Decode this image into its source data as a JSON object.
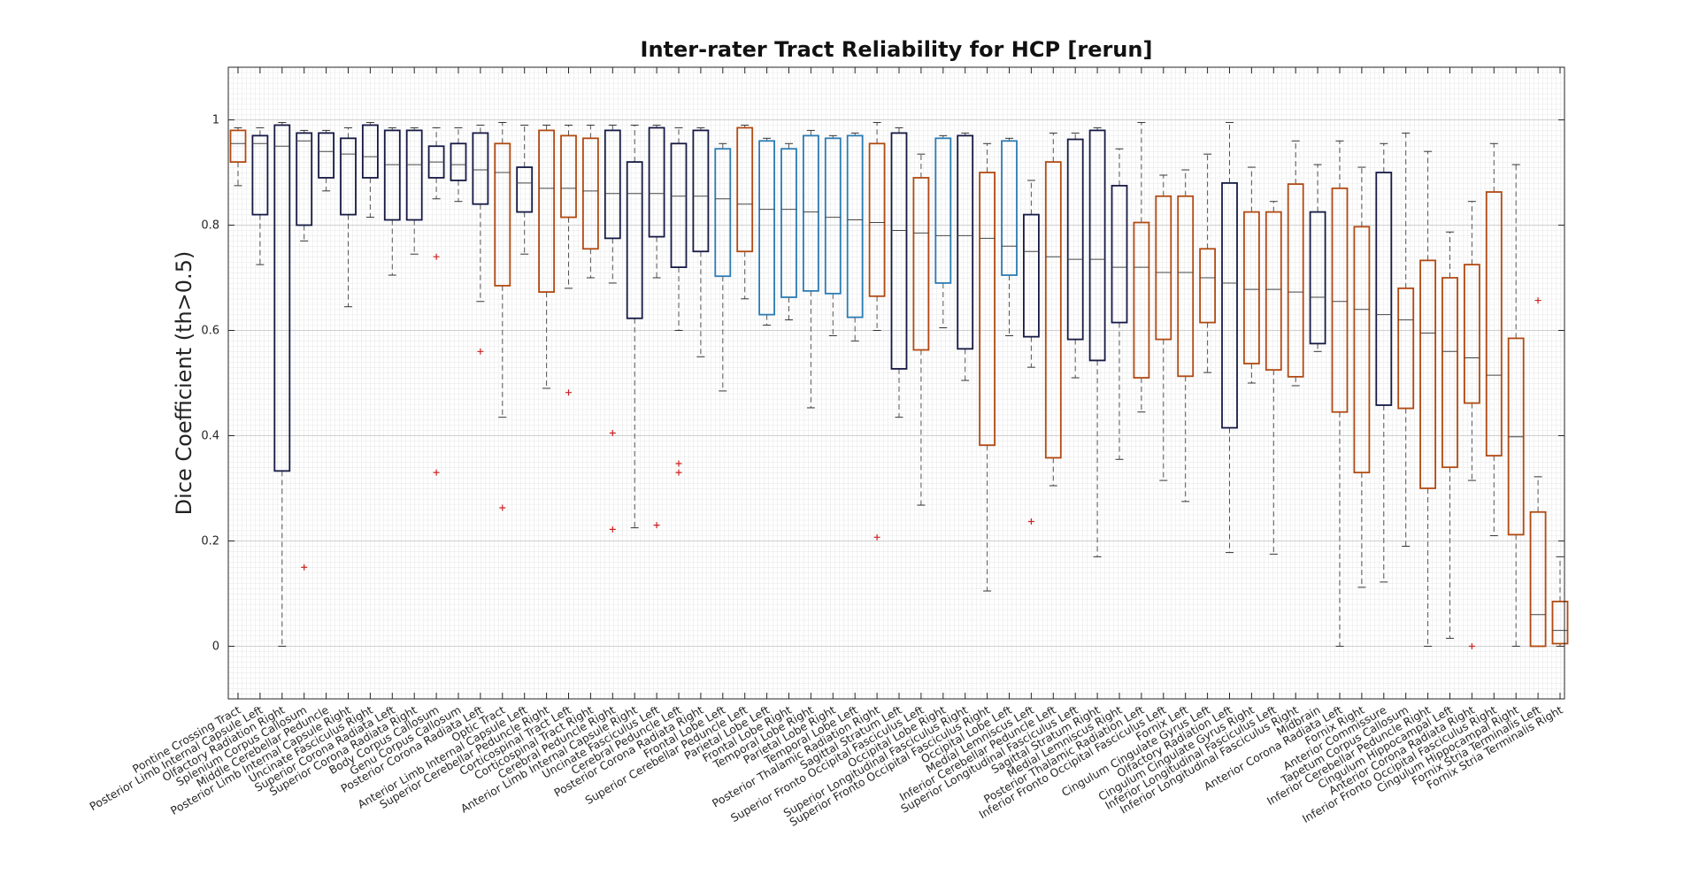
{
  "chart_data": {
    "type": "boxplot",
    "title": "Inter-rater Tract Reliability for HCP [rerun]",
    "xlabel": "",
    "ylabel": "Dice Coefficient (th>0.5)",
    "ylim": [
      -0.1,
      1.1
    ],
    "yticks": [
      0,
      0.2,
      0.4,
      0.6,
      0.8,
      1
    ],
    "grid": "minor",
    "colors": {
      "navy": "#161a44",
      "orange": "#b24a12",
      "blue": "#2c7cb3",
      "outlier": "#cc2222",
      "whisker": "#555555",
      "median": "#444444"
    },
    "boxes": [
      {
        "label": "Pontine Crossing Tract",
        "color": "orange",
        "min": 0.875,
        "q1": 0.92,
        "median": 0.955,
        "q3": 0.98,
        "max": 0.985,
        "outliers": []
      },
      {
        "label": "Posterior Limb Internal Capsule Left",
        "color": "navy",
        "min": 0.725,
        "q1": 0.82,
        "median": 0.955,
        "q3": 0.97,
        "max": 0.985,
        "outliers": []
      },
      {
        "label": "Olfactory Radiation Right",
        "color": "navy",
        "min": 0.0,
        "q1": 0.333,
        "median": 0.95,
        "q3": 0.99,
        "max": 0.995,
        "outliers": []
      },
      {
        "label": "Splenium Corpus Callosum",
        "color": "navy",
        "min": 0.77,
        "q1": 0.8,
        "median": 0.96,
        "q3": 0.975,
        "max": 0.98,
        "outliers": [
          0.15
        ]
      },
      {
        "label": "Middle Cerebellar Peduncle",
        "color": "navy",
        "min": 0.865,
        "q1": 0.89,
        "median": 0.94,
        "q3": 0.975,
        "max": 0.98,
        "outliers": []
      },
      {
        "label": "Posterior Limb Internal Capsule Right",
        "color": "navy",
        "min": 0.645,
        "q1": 0.82,
        "median": 0.935,
        "q3": 0.965,
        "max": 0.985,
        "outliers": []
      },
      {
        "label": "Uncinate Fasciculus Right",
        "color": "navy",
        "min": 0.815,
        "q1": 0.89,
        "median": 0.93,
        "q3": 0.99,
        "max": 0.995,
        "outliers": []
      },
      {
        "label": "Superior Corona Radiata Left",
        "color": "navy",
        "min": 0.705,
        "q1": 0.81,
        "median": 0.915,
        "q3": 0.98,
        "max": 0.985,
        "outliers": []
      },
      {
        "label": "Superior Corona Radiata Right",
        "color": "navy",
        "min": 0.745,
        "q1": 0.81,
        "median": 0.915,
        "q3": 0.98,
        "max": 0.985,
        "outliers": []
      },
      {
        "label": "Body Corpus Callosum",
        "color": "navy",
        "min": 0.85,
        "q1": 0.89,
        "median": 0.92,
        "q3": 0.95,
        "max": 0.985,
        "outliers": [
          0.74,
          0.33
        ]
      },
      {
        "label": "Genu Corpus Callosum",
        "color": "navy",
        "min": 0.845,
        "q1": 0.885,
        "median": 0.915,
        "q3": 0.955,
        "max": 0.985,
        "outliers": []
      },
      {
        "label": "Posterior Corona Radiata Left",
        "color": "navy",
        "min": 0.655,
        "q1": 0.84,
        "median": 0.905,
        "q3": 0.975,
        "max": 0.99,
        "outliers": [
          0.56
        ]
      },
      {
        "label": "Optic Tract",
        "color": "orange",
        "min": 0.435,
        "q1": 0.685,
        "median": 0.9,
        "q3": 0.955,
        "max": 0.995,
        "outliers": [
          0.263
        ]
      },
      {
        "label": "Anterior Limb Internal Capsule Left",
        "color": "navy",
        "min": 0.745,
        "q1": 0.825,
        "median": 0.88,
        "q3": 0.91,
        "max": 0.99,
        "outliers": []
      },
      {
        "label": "Superior Cerebellar Peduncle Right",
        "color": "orange",
        "min": 0.49,
        "q1": 0.673,
        "median": 0.87,
        "q3": 0.98,
        "max": 0.99,
        "outliers": []
      },
      {
        "label": "Corticospinal Tract Left",
        "color": "orange",
        "min": 0.68,
        "q1": 0.815,
        "median": 0.87,
        "q3": 0.97,
        "max": 0.99,
        "outliers": [
          0.482
        ]
      },
      {
        "label": "Corticospinal Tract Right",
        "color": "orange",
        "min": 0.7,
        "q1": 0.755,
        "median": 0.865,
        "q3": 0.965,
        "max": 0.99,
        "outliers": []
      },
      {
        "label": "Cerebral Peduncle Right",
        "color": "navy",
        "min": 0.69,
        "q1": 0.775,
        "median": 0.86,
        "q3": 0.98,
        "max": 0.99,
        "outliers": [
          0.405,
          0.222
        ]
      },
      {
        "label": "Anterior Limb Internal Capsule Right",
        "color": "navy",
        "min": 0.225,
        "q1": 0.623,
        "median": 0.86,
        "q3": 0.92,
        "max": 0.99,
        "outliers": []
      },
      {
        "label": "Uncinate Fasciculus Left",
        "color": "navy",
        "min": 0.7,
        "q1": 0.778,
        "median": 0.86,
        "q3": 0.985,
        "max": 0.99,
        "outliers": [
          0.23
        ]
      },
      {
        "label": "Cerebral Peduncle Left",
        "color": "navy",
        "min": 0.6,
        "q1": 0.72,
        "median": 0.855,
        "q3": 0.955,
        "max": 0.985,
        "outliers": [
          0.347,
          0.33
        ]
      },
      {
        "label": "Posterior Corona Radiata Right",
        "color": "navy",
        "min": 0.55,
        "q1": 0.75,
        "median": 0.855,
        "q3": 0.98,
        "max": 0.985,
        "outliers": []
      },
      {
        "label": "Frontal Lobe Left",
        "color": "blue",
        "min": 0.485,
        "q1": 0.703,
        "median": 0.85,
        "q3": 0.945,
        "max": 0.955,
        "outliers": []
      },
      {
        "label": "Superior Cerebellar Peduncle Left",
        "color": "orange",
        "min": 0.66,
        "q1": 0.75,
        "median": 0.84,
        "q3": 0.985,
        "max": 0.99,
        "outliers": []
      },
      {
        "label": "Parietal Lobe Left",
        "color": "blue",
        "min": 0.61,
        "q1": 0.63,
        "median": 0.83,
        "q3": 0.96,
        "max": 0.965,
        "outliers": []
      },
      {
        "label": "Frontal Lobe Right",
        "color": "blue",
        "min": 0.62,
        "q1": 0.663,
        "median": 0.83,
        "q3": 0.945,
        "max": 0.955,
        "outliers": []
      },
      {
        "label": "Temporal Lobe Right",
        "color": "blue",
        "min": 0.453,
        "q1": 0.675,
        "median": 0.825,
        "q3": 0.97,
        "max": 0.98,
        "outliers": []
      },
      {
        "label": "Parietal Lobe Right",
        "color": "blue",
        "min": 0.59,
        "q1": 0.67,
        "median": 0.815,
        "q3": 0.965,
        "max": 0.97,
        "outliers": []
      },
      {
        "label": "Temporal Lobe Left",
        "color": "blue",
        "min": 0.58,
        "q1": 0.625,
        "median": 0.81,
        "q3": 0.97,
        "max": 0.975,
        "outliers": []
      },
      {
        "label": "Posterior Thalamic Radiation Right",
        "color": "orange",
        "min": 0.6,
        "q1": 0.665,
        "median": 0.805,
        "q3": 0.955,
        "max": 0.995,
        "outliers": [
          0.207
        ]
      },
      {
        "label": "Sagittal Stratum Left",
        "color": "navy",
        "min": 0.435,
        "q1": 0.527,
        "median": 0.79,
        "q3": 0.975,
        "max": 0.985,
        "outliers": []
      },
      {
        "label": "Superior Fronto Occipital Fasciculus Left",
        "color": "orange",
        "min": 0.268,
        "q1": 0.563,
        "median": 0.785,
        "q3": 0.89,
        "max": 0.935,
        "outliers": []
      },
      {
        "label": "Occipital Lobe Right",
        "color": "blue",
        "min": 0.605,
        "q1": 0.69,
        "median": 0.78,
        "q3": 0.965,
        "max": 0.97,
        "outliers": []
      },
      {
        "label": "Superior Longitudinal Fasciculus Right",
        "color": "navy",
        "min": 0.505,
        "q1": 0.565,
        "median": 0.78,
        "q3": 0.97,
        "max": 0.975,
        "outliers": []
      },
      {
        "label": "Superior Fronto Occipital Fasciculus Right",
        "color": "orange",
        "min": 0.105,
        "q1": 0.382,
        "median": 0.775,
        "q3": 0.9,
        "max": 0.955,
        "outliers": []
      },
      {
        "label": "Occipital Lobe Left",
        "color": "blue",
        "min": 0.59,
        "q1": 0.705,
        "median": 0.76,
        "q3": 0.96,
        "max": 0.965,
        "outliers": []
      },
      {
        "label": "Medial Lemniscus Left",
        "color": "navy",
        "min": 0.53,
        "q1": 0.588,
        "median": 0.75,
        "q3": 0.82,
        "max": 0.885,
        "outliers": [
          0.237
        ]
      },
      {
        "label": "Inferior Cerebellar Peduncle Left",
        "color": "orange",
        "min": 0.305,
        "q1": 0.358,
        "median": 0.74,
        "q3": 0.92,
        "max": 0.975,
        "outliers": []
      },
      {
        "label": "Superior Longitudinal Fasciculus Left",
        "color": "navy",
        "min": 0.51,
        "q1": 0.583,
        "median": 0.735,
        "q3": 0.963,
        "max": 0.975,
        "outliers": []
      },
      {
        "label": "Sagittal Stratum Right",
        "color": "navy",
        "min": 0.17,
        "q1": 0.543,
        "median": 0.735,
        "q3": 0.98,
        "max": 0.985,
        "outliers": []
      },
      {
        "label": "Medial Lemniscus Right",
        "color": "navy",
        "min": 0.355,
        "q1": 0.615,
        "median": 0.72,
        "q3": 0.875,
        "max": 0.945,
        "outliers": []
      },
      {
        "label": "Posterior Thalamic Radiation Left",
        "color": "orange",
        "min": 0.445,
        "q1": 0.51,
        "median": 0.72,
        "q3": 0.805,
        "max": 0.995,
        "outliers": []
      },
      {
        "label": "Inferior Fronto Occipital Fasciculus Left",
        "color": "orange",
        "min": 0.315,
        "q1": 0.583,
        "median": 0.71,
        "q3": 0.855,
        "max": 0.895,
        "outliers": []
      },
      {
        "label": "Fornix Left",
        "color": "orange",
        "min": 0.275,
        "q1": 0.513,
        "median": 0.71,
        "q3": 0.855,
        "max": 0.905,
        "outliers": []
      },
      {
        "label": "Cingulum Cingulate Gyrus Left",
        "color": "orange",
        "min": 0.52,
        "q1": 0.615,
        "median": 0.7,
        "q3": 0.755,
        "max": 0.935,
        "outliers": []
      },
      {
        "label": "Olfactory Radiation Left",
        "color": "navy",
        "min": 0.178,
        "q1": 0.415,
        "median": 0.69,
        "q3": 0.88,
        "max": 0.995,
        "outliers": []
      },
      {
        "label": "Cingulum Cingulate Gyrus Right",
        "color": "orange",
        "min": 0.5,
        "q1": 0.537,
        "median": 0.678,
        "q3": 0.825,
        "max": 0.91,
        "outliers": []
      },
      {
        "label": "Inferior Longitudinal Fasciculus Left",
        "color": "orange",
        "min": 0.175,
        "q1": 0.525,
        "median": 0.678,
        "q3": 0.825,
        "max": 0.845,
        "outliers": []
      },
      {
        "label": "Inferior Longitudinal Fasciculus Right",
        "color": "orange",
        "min": 0.495,
        "q1": 0.512,
        "median": 0.673,
        "q3": 0.878,
        "max": 0.96,
        "outliers": []
      },
      {
        "label": "Midbrain",
        "color": "navy",
        "min": 0.56,
        "q1": 0.575,
        "median": 0.663,
        "q3": 0.825,
        "max": 0.915,
        "outliers": []
      },
      {
        "label": "Anterior Corona Radiata Left",
        "color": "orange",
        "min": 0.0,
        "q1": 0.445,
        "median": 0.655,
        "q3": 0.87,
        "max": 0.96,
        "outliers": []
      },
      {
        "label": "Fornix Right",
        "color": "orange",
        "min": 0.112,
        "q1": 0.33,
        "median": 0.64,
        "q3": 0.797,
        "max": 0.91,
        "outliers": []
      },
      {
        "label": "Anterior Commissure",
        "color": "navy",
        "min": 0.122,
        "q1": 0.458,
        "median": 0.63,
        "q3": 0.9,
        "max": 0.955,
        "outliers": []
      },
      {
        "label": "Tapetum Corpus Callosum",
        "color": "orange",
        "min": 0.19,
        "q1": 0.452,
        "median": 0.62,
        "q3": 0.68,
        "max": 0.975,
        "outliers": []
      },
      {
        "label": "Inferior Cerebellar Peduncle Right",
        "color": "orange",
        "min": 0.0,
        "q1": 0.3,
        "median": 0.595,
        "q3": 0.733,
        "max": 0.94,
        "outliers": []
      },
      {
        "label": "Cingulum Hippocampal Left",
        "color": "orange",
        "min": 0.015,
        "q1": 0.34,
        "median": 0.56,
        "q3": 0.7,
        "max": 0.787,
        "outliers": []
      },
      {
        "label": "Anterior Corona Radiata Right",
        "color": "orange",
        "min": 0.315,
        "q1": 0.462,
        "median": 0.548,
        "q3": 0.725,
        "max": 0.845,
        "outliers": [
          0.0
        ]
      },
      {
        "label": "Inferior Fronto Occipital Fasciculus Right",
        "color": "orange",
        "min": 0.21,
        "q1": 0.362,
        "median": 0.515,
        "q3": 0.863,
        "max": 0.955,
        "outliers": []
      },
      {
        "label": "Cingulum Hippocampal Right",
        "color": "orange",
        "min": 0.0,
        "q1": 0.212,
        "median": 0.398,
        "q3": 0.585,
        "max": 0.915,
        "outliers": []
      },
      {
        "label": "Fornix Stria Terminalis Left",
        "color": "orange",
        "min": 0.0,
        "q1": 0.0,
        "median": 0.06,
        "q3": 0.255,
        "max": 0.322,
        "outliers": [
          0.657
        ]
      },
      {
        "label": "Fornix Stria Terminalis Right",
        "color": "orange",
        "min": 0.0,
        "q1": 0.005,
        "median": 0.03,
        "q3": 0.085,
        "max": 0.17,
        "outliers": []
      }
    ]
  }
}
